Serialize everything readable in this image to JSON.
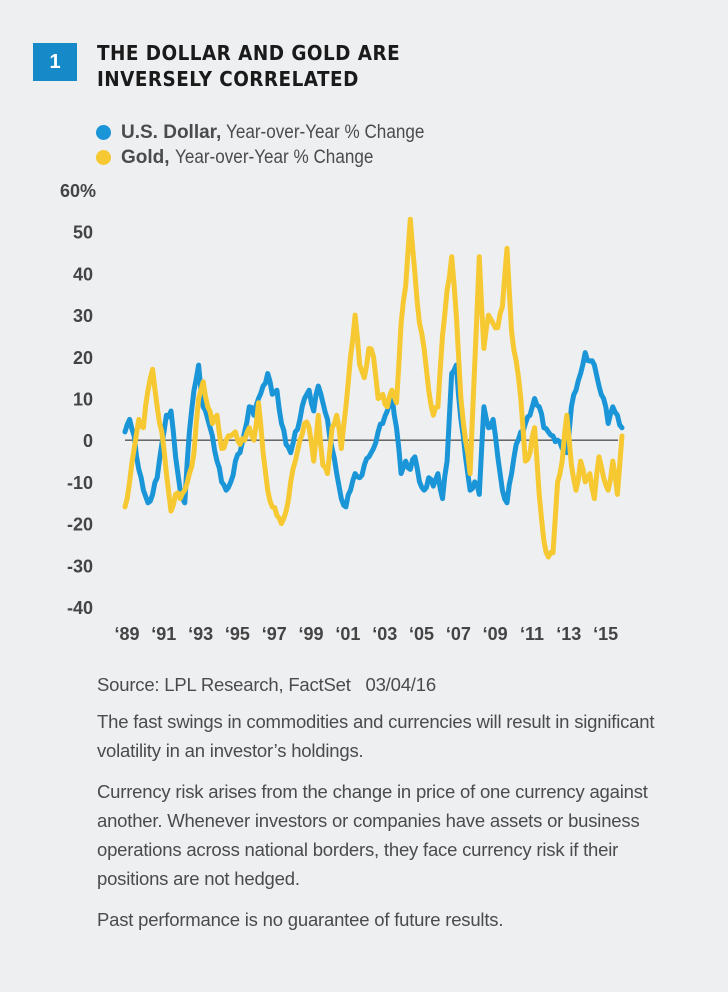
{
  "figure": {
    "number": "1",
    "title": "THE DOLLAR AND GOLD ARE INVERSELY CORRELATED",
    "title_lines": [
      "THE DOLLAR AND GOLD ARE",
      "INVERSELY CORRELATED"
    ]
  },
  "legend": [
    {
      "name": "U.S. Dollar,",
      "desc": "Year-over-Year % Change",
      "color": "#1a96d8"
    },
    {
      "name": "Gold,",
      "desc": "Year-over-Year % Change",
      "color": "#f6c832"
    }
  ],
  "notes": {
    "source": "Source: LPL Research, FactSet   03/04/16",
    "paragraphs": [
      "The fast swings in commodities and currencies will result in significant volatility in an investor’s holdings.",
      "Currency risk arises from the change in price of one currency against another. Whenever investors or companies have assets or business operations across national borders, they face currency risk if their positions are not hedged.",
      "Past performance is no guarantee of future results."
    ]
  },
  "chart_data": {
    "type": "line",
    "title": "THE DOLLAR AND GOLD ARE INVERSELY CORRELATED",
    "xlabel": "",
    "ylabel": "",
    "ylim": [
      -40,
      60
    ],
    "xlim": [
      1989,
      2016
    ],
    "yticks": [
      60,
      50,
      40,
      30,
      20,
      10,
      0,
      -10,
      -20,
      -30,
      -40
    ],
    "ytick_labels": [
      "60%",
      "50",
      "40",
      "30",
      "20",
      "10",
      "0",
      "-10",
      "-20",
      "-30",
      "-40"
    ],
    "xticks": [
      1989,
      1991,
      1993,
      1995,
      1997,
      1999,
      2001,
      2003,
      2005,
      2007,
      2009,
      2011,
      2013,
      2015
    ],
    "xtick_labels": [
      "‘89",
      "‘91",
      "‘93",
      "‘95",
      "‘97",
      "‘99",
      "‘01",
      "‘03",
      "‘05",
      "‘07",
      "‘09",
      "‘11",
      "‘13",
      "‘15"
    ],
    "zero_line": true,
    "grid": false,
    "legend_position": "top-left",
    "x_start": 1989,
    "x_step": 0.25,
    "series": [
      {
        "name": "U.S. Dollar, Year-over-Year % Change",
        "color": "#1a96d8",
        "values": [
          2,
          5,
          1,
          -7,
          -12,
          -15,
          -13,
          -9,
          -1,
          6,
          7,
          -4,
          -12,
          -15,
          2,
          12,
          18,
          8,
          5,
          1,
          -5,
          -10,
          -12,
          -10,
          -5,
          -3,
          2,
          8,
          6,
          10,
          13,
          16,
          11,
          12,
          4,
          -1,
          -3,
          2,
          5,
          10,
          12,
          7,
          13,
          9,
          5,
          -2,
          -8,
          -14,
          -16,
          -12,
          -8,
          -9,
          -6,
          -4,
          -2,
          2,
          4,
          7,
          11,
          3,
          -8,
          -5,
          -7,
          -4,
          -10,
          -12,
          -9,
          -11,
          -8,
          -14,
          -5,
          16,
          18,
          5,
          -4,
          -12,
          -10,
          -13,
          8,
          3,
          5,
          -4,
          -12,
          -15,
          -8,
          -1,
          2,
          4,
          6,
          10,
          8,
          3,
          2,
          1,
          0,
          -2,
          -3,
          8,
          12,
          16,
          21,
          19,
          18,
          13,
          10,
          4,
          8,
          6,
          3
        ]
      },
      {
        "name": "Gold, Year-over-Year % Change",
        "color": "#f6c832",
        "values": [
          -16,
          -10,
          -2,
          5,
          3,
          12,
          17,
          8,
          2,
          -8,
          -17,
          -13,
          -14,
          -12,
          -8,
          -3,
          10,
          14,
          8,
          4,
          6,
          -2,
          0,
          1,
          2,
          -1,
          0,
          3,
          0,
          9,
          -3,
          -12,
          -16,
          -18,
          -20,
          -17,
          -10,
          -5,
          0,
          4,
          3,
          -5,
          6,
          -6,
          -8,
          3,
          6,
          -2,
          8,
          20,
          30,
          18,
          15,
          22,
          20,
          10,
          11,
          8,
          12,
          9,
          28,
          37,
          53,
          40,
          28,
          22,
          12,
          6,
          8,
          25,
          36,
          44,
          30,
          10,
          0,
          -8,
          18,
          44,
          22,
          30,
          28,
          27,
          32,
          46,
          26,
          19,
          10,
          -5,
          -3,
          3,
          -13,
          -24,
          -28,
          -27,
          -10,
          -5,
          6,
          -6,
          -12,
          -5,
          -10,
          -8,
          -14,
          -4,
          -9,
          -12,
          -5,
          -13,
          1
        ]
      }
    ]
  }
}
